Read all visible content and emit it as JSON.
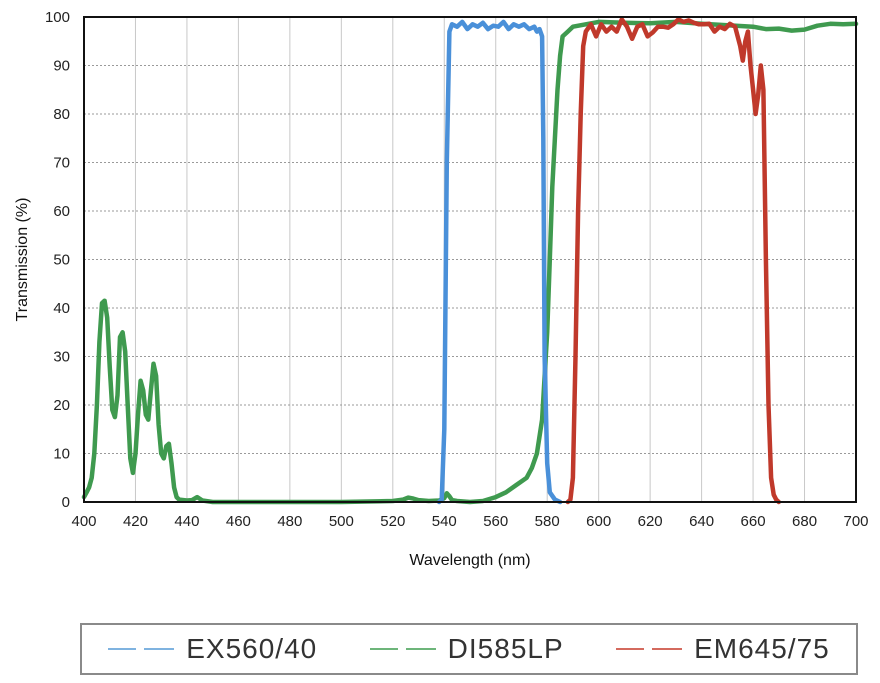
{
  "chart_data": {
    "type": "line",
    "xlabel": "Wavelength (nm)",
    "ylabel": "Transmission (%)",
    "xlim": [
      400,
      700
    ],
    "ylim": [
      0,
      100
    ],
    "x_ticks": [
      400,
      420,
      440,
      460,
      480,
      500,
      520,
      540,
      560,
      580,
      600,
      620,
      640,
      660,
      680,
      700
    ],
    "y_ticks": [
      0,
      10,
      20,
      30,
      40,
      50,
      60,
      70,
      80,
      90,
      100
    ],
    "grid": "dotted",
    "legend_position": "bottom",
    "series": [
      {
        "name": "EX560/40",
        "color": "#4a90d9",
        "points": [
          [
            538,
            0
          ],
          [
            539,
            0.5
          ],
          [
            540,
            15
          ],
          [
            541,
            70
          ],
          [
            542,
            97
          ],
          [
            543,
            98.5
          ],
          [
            545,
            98
          ],
          [
            547,
            99
          ],
          [
            549,
            97.5
          ],
          [
            551,
            98.5
          ],
          [
            553,
            98
          ],
          [
            555,
            98.8
          ],
          [
            557,
            97.5
          ],
          [
            559,
            98.2
          ],
          [
            561,
            98
          ],
          [
            563,
            99
          ],
          [
            565,
            97.5
          ],
          [
            567,
            98.5
          ],
          [
            569,
            98
          ],
          [
            571,
            98.5
          ],
          [
            573,
            97.5
          ],
          [
            575,
            98
          ],
          [
            576,
            97
          ],
          [
            577,
            97.5
          ],
          [
            578,
            96
          ],
          [
            578.5,
            75
          ],
          [
            579,
            30
          ],
          [
            580,
            8
          ],
          [
            581,
            2
          ],
          [
            583,
            0.5
          ],
          [
            585,
            0
          ]
        ]
      },
      {
        "name": "DI585LP",
        "color": "#3f9a4f",
        "points": [
          [
            400,
            1
          ],
          [
            401,
            2
          ],
          [
            402,
            3
          ],
          [
            403,
            5
          ],
          [
            404,
            10
          ],
          [
            405,
            20
          ],
          [
            406,
            33
          ],
          [
            407,
            41
          ],
          [
            408,
            41.5
          ],
          [
            409,
            38
          ],
          [
            410,
            28
          ],
          [
            411,
            19
          ],
          [
            412,
            17.5
          ],
          [
            413,
            22
          ],
          [
            414,
            34
          ],
          [
            415,
            35
          ],
          [
            416,
            31
          ],
          [
            417,
            20
          ],
          [
            418,
            9
          ],
          [
            419,
            6
          ],
          [
            420,
            10
          ],
          [
            421,
            18
          ],
          [
            422,
            25
          ],
          [
            423,
            23
          ],
          [
            424,
            18
          ],
          [
            425,
            17
          ],
          [
            426,
            23
          ],
          [
            427,
            28.5
          ],
          [
            428,
            26
          ],
          [
            429,
            16
          ],
          [
            430,
            10
          ],
          [
            431,
            9
          ],
          [
            432,
            11.5
          ],
          [
            433,
            12
          ],
          [
            434,
            8
          ],
          [
            435,
            3
          ],
          [
            436,
            1
          ],
          [
            437,
            0.5
          ],
          [
            440,
            0.3
          ],
          [
            442,
            0.4
          ],
          [
            444,
            1
          ],
          [
            446,
            0.3
          ],
          [
            450,
            0
          ],
          [
            460,
            0
          ],
          [
            480,
            0
          ],
          [
            500,
            0
          ],
          [
            520,
            0.2
          ],
          [
            524,
            0.5
          ],
          [
            526,
            0.9
          ],
          [
            528,
            0.7
          ],
          [
            530,
            0.4
          ],
          [
            534,
            0.2
          ],
          [
            538,
            0.3
          ],
          [
            540,
            0.8
          ],
          [
            541,
            1.8
          ],
          [
            542,
            1.2
          ],
          [
            543,
            0.4
          ],
          [
            545,
            0.2
          ],
          [
            550,
            0
          ],
          [
            555,
            0.2
          ],
          [
            560,
            1
          ],
          [
            564,
            2
          ],
          [
            568,
            3.5
          ],
          [
            572,
            5
          ],
          [
            574,
            7
          ],
          [
            576,
            10
          ],
          [
            578,
            17
          ],
          [
            580,
            35
          ],
          [
            581,
            50
          ],
          [
            582,
            65
          ],
          [
            583,
            75
          ],
          [
            584,
            85
          ],
          [
            585,
            92
          ],
          [
            586,
            96
          ],
          [
            588,
            97
          ],
          [
            590,
            98
          ],
          [
            595,
            98.5
          ],
          [
            600,
            99
          ],
          [
            610,
            98.8
          ],
          [
            620,
            98.7
          ],
          [
            630,
            99
          ],
          [
            640,
            98.6
          ],
          [
            650,
            98.3
          ],
          [
            660,
            98
          ],
          [
            665,
            97.5
          ],
          [
            670,
            97.6
          ],
          [
            675,
            97.2
          ],
          [
            680,
            97.4
          ],
          [
            685,
            98.2
          ],
          [
            690,
            98.6
          ],
          [
            695,
            98.5
          ],
          [
            700,
            98.6
          ]
        ]
      },
      {
        "name": "EM645/75",
        "color": "#c0392b",
        "points": [
          [
            588,
            0
          ],
          [
            589,
            0.5
          ],
          [
            590,
            5
          ],
          [
            591,
            30
          ],
          [
            592,
            60
          ],
          [
            593,
            80
          ],
          [
            594,
            94
          ],
          [
            595,
            97
          ],
          [
            597,
            98.5
          ],
          [
            599,
            96
          ],
          [
            601,
            98.5
          ],
          [
            603,
            97
          ],
          [
            605,
            98
          ],
          [
            607,
            97
          ],
          [
            609,
            99.5
          ],
          [
            611,
            98
          ],
          [
            613,
            95.5
          ],
          [
            615,
            98
          ],
          [
            617,
            98.5
          ],
          [
            619,
            96
          ],
          [
            621,
            96.8
          ],
          [
            623,
            98
          ],
          [
            625,
            98
          ],
          [
            627,
            97.8
          ],
          [
            629,
            98.5
          ],
          [
            631,
            99.5
          ],
          [
            633,
            99
          ],
          [
            635,
            99.3
          ],
          [
            637,
            98.8
          ],
          [
            639,
            98.5
          ],
          [
            641,
            98.5
          ],
          [
            643,
            98.6
          ],
          [
            645,
            97
          ],
          [
            647,
            98
          ],
          [
            649,
            97.5
          ],
          [
            651,
            98.6
          ],
          [
            653,
            98
          ],
          [
            655,
            94
          ],
          [
            656,
            91
          ],
          [
            657,
            95
          ],
          [
            658,
            97
          ],
          [
            659,
            90
          ],
          [
            660,
            85
          ],
          [
            661,
            80
          ],
          [
            662,
            84
          ],
          [
            663,
            90
          ],
          [
            664,
            85
          ],
          [
            665,
            50
          ],
          [
            666,
            20
          ],
          [
            667,
            5
          ],
          [
            668,
            1.5
          ],
          [
            669,
            0.5
          ],
          [
            670,
            0
          ]
        ]
      }
    ]
  },
  "legend": {
    "items": [
      {
        "label": "EX560/40",
        "color": "#7fb3e0"
      },
      {
        "label": "DI585LP",
        "color": "#6db57a"
      },
      {
        "label": "EM645/75",
        "color": "#d46a5e"
      }
    ]
  }
}
